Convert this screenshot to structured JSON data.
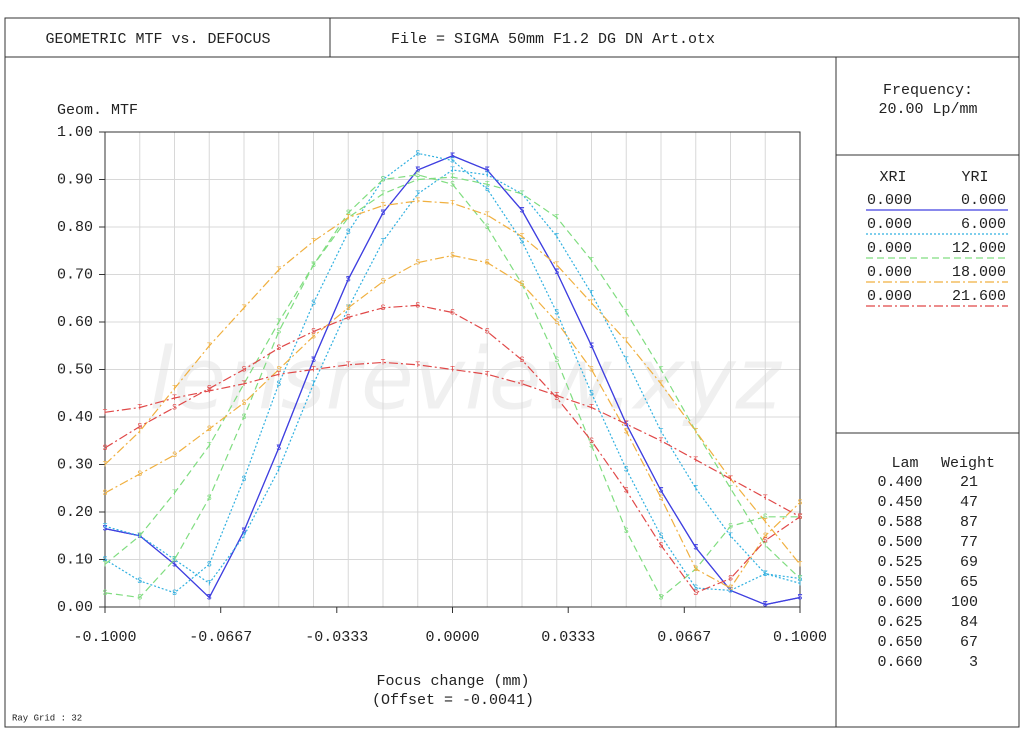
{
  "chart_data": {
    "type": "line",
    "title": "GEOMETRIC MTF vs. DEFOCUS",
    "file": "File = SIGMA 50mm F1.2 DG DN Art.otx",
    "y_label": "Geom. MTF",
    "x_label": "Focus change (mm)",
    "offset": "(Offset = -0.0041)",
    "footer": "Ray Grid : 32",
    "watermark": "lensreview.xyz",
    "frequency_label": "Frequency:",
    "frequency": "20.00  Lp/mm",
    "legend_headers": [
      "XRI",
      "YRI"
    ],
    "markers": {
      "tangential": "T",
      "sagittal": "S"
    },
    "wavelengths": {
      "headers": [
        "Lam",
        "Weight"
      ],
      "rows": [
        [
          "0.400",
          "21"
        ],
        [
          "0.450",
          "47"
        ],
        [
          "0.588",
          "87"
        ],
        [
          "0.500",
          "77"
        ],
        [
          "0.525",
          "69"
        ],
        [
          "0.550",
          "65"
        ],
        [
          "0.600",
          "100"
        ],
        [
          "0.625",
          "84"
        ],
        [
          "0.650",
          "67"
        ],
        [
          "0.660",
          "3"
        ]
      ]
    },
    "xlim": [
      -0.1,
      0.1
    ],
    "ylim": [
      0,
      1
    ],
    "xticks": [
      {
        "value": -0.1,
        "label": "-0.1000"
      },
      -0.0667,
      -0.0333,
      {
        "value": 0,
        "label": "0.0000"
      },
      0.0333,
      0.0667,
      {
        "value": 0.1,
        "label": "0.1000"
      }
    ],
    "yticks": [
      {
        "value": 0,
        "label": "0.00"
      },
      {
        "value": 0.1,
        "label": "0.10"
      },
      {
        "value": 0.2,
        "label": "0.20"
      },
      {
        "value": 0.3,
        "label": "0.30"
      },
      {
        "value": 0.4,
        "label": "0.40"
      },
      {
        "value": 0.5,
        "label": "0.50"
      },
      {
        "value": 0.6,
        "label": "0.60"
      },
      {
        "value": 0.7,
        "label": "0.70"
      },
      {
        "value": 0.8,
        "label": "0.80"
      },
      {
        "value": 0.9,
        "label": "0.90"
      },
      {
        "value": 1,
        "label": "1.00"
      }
    ],
    "xgrid": [
      -0.09,
      -0.08,
      -0.07,
      -0.06,
      -0.05,
      -0.04,
      -0.03,
      -0.02,
      -0.01,
      0,
      0.01,
      0.02,
      0.03,
      0.04,
      0.05,
      0.06,
      0.07,
      0.08,
      0.09
    ],
    "grid": true,
    "x": [
      -0.1,
      -0.09,
      -0.08,
      -0.07,
      -0.06,
      -0.05,
      -0.04,
      -0.03,
      -0.02,
      -0.01,
      0,
      0.01,
      0.02,
      0.03,
      0.04,
      0.05,
      0.06,
      0.07,
      0.08,
      0.09,
      0.1
    ],
    "series": [
      {
        "xri": "0.000",
        "yri": "0.000",
        "color": "#4040e0",
        "line_style": "solid",
        "tangential": [
          0.165,
          0.15,
          0.09,
          0.02,
          0.16,
          0.335,
          0.52,
          0.69,
          0.83,
          0.92,
          0.95,
          0.92,
          0.835,
          0.705,
          0.55,
          0.385,
          0.245,
          0.125,
          0.035,
          0.005,
          0.02
        ],
        "sagittal": [
          0.165,
          0.15,
          0.09,
          0.02,
          0.16,
          0.335,
          0.52,
          0.69,
          0.83,
          0.92,
          0.95,
          0.92,
          0.835,
          0.705,
          0.55,
          0.385,
          0.245,
          0.125,
          0.035,
          0.005,
          0.02
        ]
      },
      {
        "xri": "0.000",
        "yri": "6.000",
        "color": "#30b0e0",
        "line_style": "dotted",
        "tangential": [
          0.17,
          0.15,
          0.1,
          0.05,
          0.15,
          0.29,
          0.47,
          0.63,
          0.77,
          0.87,
          0.92,
          0.91,
          0.87,
          0.78,
          0.66,
          0.52,
          0.37,
          0.25,
          0.15,
          0.07,
          0.05
        ],
        "sagittal": [
          0.1,
          0.055,
          0.03,
          0.09,
          0.27,
          0.47,
          0.64,
          0.79,
          0.9,
          0.955,
          0.94,
          0.88,
          0.77,
          0.62,
          0.45,
          0.29,
          0.15,
          0.04,
          0.035,
          0.07,
          0.06
        ]
      },
      {
        "xri": "0.000",
        "yri": "12.000",
        "color": "#80dd80",
        "line_style": "dashed",
        "tangential": [
          0.09,
          0.15,
          0.24,
          0.34,
          0.47,
          0.6,
          0.72,
          0.82,
          0.87,
          0.9,
          0.905,
          0.89,
          0.87,
          0.82,
          0.73,
          0.62,
          0.5,
          0.37,
          0.25,
          0.13,
          0.06
        ],
        "sagittal": [
          0.03,
          0.02,
          0.1,
          0.23,
          0.4,
          0.58,
          0.72,
          0.83,
          0.9,
          0.91,
          0.89,
          0.8,
          0.68,
          0.52,
          0.34,
          0.16,
          0.02,
          0.08,
          0.17,
          0.19,
          0.19
        ]
      },
      {
        "xri": "0.000",
        "yri": "18.000",
        "color": "#f0b040",
        "line_style": "dashdot",
        "tangential": [
          0.3,
          0.37,
          0.46,
          0.55,
          0.63,
          0.71,
          0.77,
          0.82,
          0.845,
          0.855,
          0.85,
          0.825,
          0.78,
          0.72,
          0.64,
          0.56,
          0.47,
          0.37,
          0.27,
          0.18,
          0.09
        ],
        "sagittal": [
          0.24,
          0.28,
          0.32,
          0.375,
          0.43,
          0.5,
          0.57,
          0.63,
          0.685,
          0.725,
          0.74,
          0.725,
          0.68,
          0.6,
          0.5,
          0.37,
          0.23,
          0.08,
          0.04,
          0.15,
          0.22
        ]
      },
      {
        "xri": "0.000",
        "yri": "21.600",
        "color": "#e04848",
        "line_style": "dashdot",
        "tangential": [
          0.41,
          0.42,
          0.44,
          0.455,
          0.47,
          0.49,
          0.5,
          0.51,
          0.515,
          0.51,
          0.5,
          0.49,
          0.47,
          0.445,
          0.42,
          0.385,
          0.35,
          0.31,
          0.27,
          0.23,
          0.19
        ],
        "sagittal": [
          0.335,
          0.38,
          0.42,
          0.46,
          0.5,
          0.545,
          0.58,
          0.61,
          0.63,
          0.635,
          0.62,
          0.58,
          0.52,
          0.44,
          0.35,
          0.245,
          0.13,
          0.03,
          0.06,
          0.14,
          0.19
        ]
      }
    ]
  }
}
